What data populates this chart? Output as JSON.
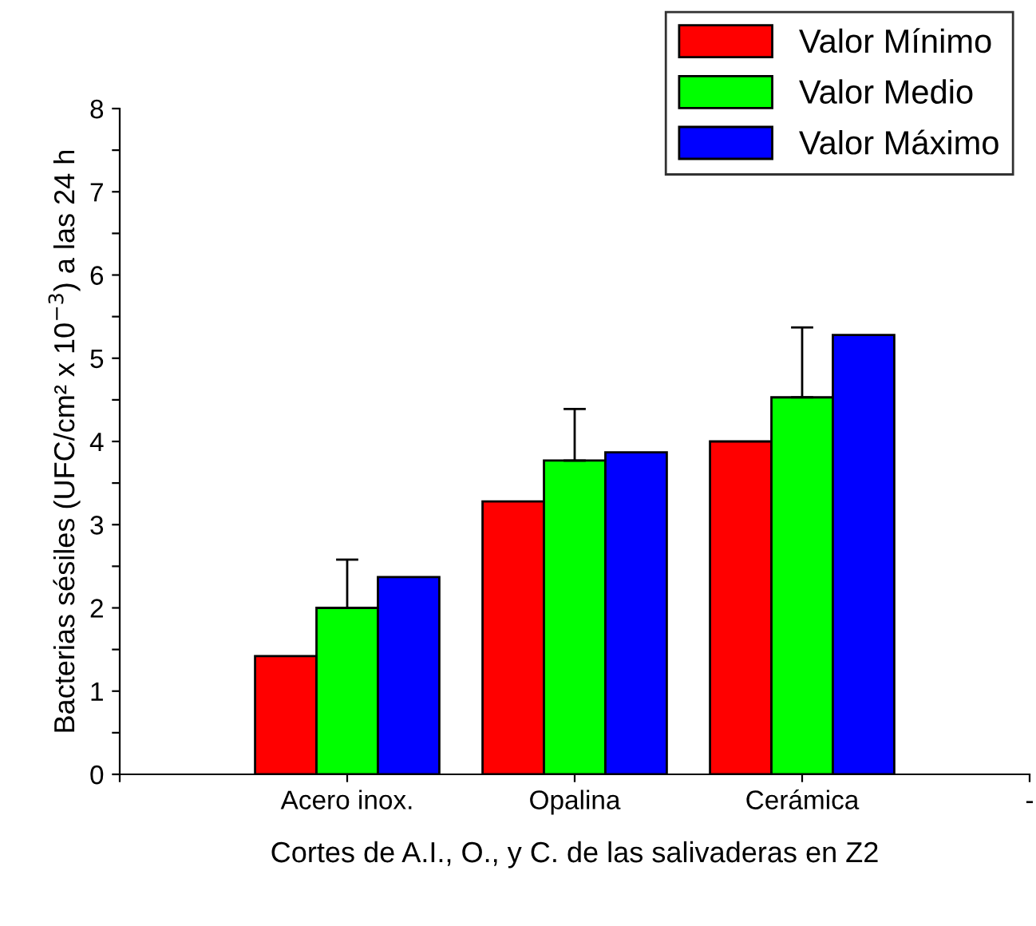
{
  "chart_data": {
    "type": "bar",
    "xlabel": "Cortes de A.I., O., y C. de las salivaderas en Z2",
    "ylabel": "Bacterias sésiles (UFC/cm² x 10$^{−3}$) a las 24 h",
    "categories": [
      null,
      "Acero inox.",
      "Opalina",
      "Cerámica",
      "-"
    ],
    "series": [
      {
        "name": "Valor Mínimo",
        "color": "#ff0000",
        "values": [
          null,
          1.42,
          3.28,
          4.0,
          null
        ]
      },
      {
        "name": "Valor Medio",
        "color": "#00ff00",
        "values": [
          null,
          2.0,
          3.77,
          4.53,
          null
        ],
        "errors": [
          null,
          [
            2.0,
            2.58
          ],
          [
            3.77,
            4.39
          ],
          [
            4.53,
            5.37
          ],
          null
        ]
      },
      {
        "name": "Valor Máximo",
        "color": "#0000ff",
        "values": [
          null,
          2.37,
          3.87,
          5.28,
          null
        ]
      }
    ],
    "ylim": [
      0,
      8
    ],
    "yticks": [
      0,
      {
        "value": 0.5,
        "label": null
      },
      1,
      {
        "value": 1.5,
        "label": null
      },
      2,
      {
        "value": 2.5,
        "label": null
      },
      3,
      {
        "value": 3.5,
        "label": null
      },
      4,
      {
        "value": 4.5,
        "label": null
      },
      5,
      {
        "value": 5.5,
        "label": null
      },
      6,
      {
        "value": 6.5,
        "label": null
      },
      7,
      {
        "value": 7.5,
        "label": null
      },
      8
    ],
    "grid": false,
    "legend": "top right"
  }
}
